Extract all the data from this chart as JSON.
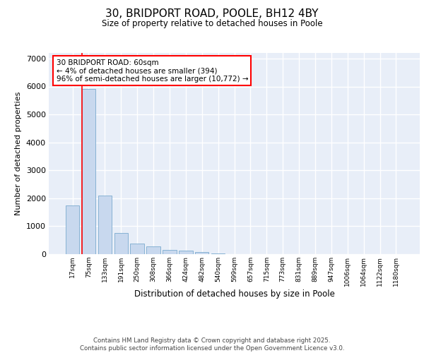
{
  "title_line1": "30, BRIDPORT ROAD, POOLE, BH12 4BY",
  "title_line2": "Size of property relative to detached houses in Poole",
  "xlabel": "Distribution of detached houses by size in Poole",
  "ylabel": "Number of detached properties",
  "categories": [
    "17sqm",
    "75sqm",
    "133sqm",
    "191sqm",
    "250sqm",
    "308sqm",
    "366sqm",
    "424sqm",
    "482sqm",
    "540sqm",
    "599sqm",
    "657sqm",
    "715sqm",
    "773sqm",
    "831sqm",
    "889sqm",
    "947sqm",
    "1006sqm",
    "1064sqm",
    "1122sqm",
    "1180sqm"
  ],
  "values": [
    1750,
    5900,
    2100,
    750,
    370,
    270,
    150,
    120,
    70,
    30,
    10,
    0,
    0,
    0,
    0,
    0,
    0,
    0,
    0,
    0,
    0
  ],
  "bar_color": "#c8d8ee",
  "bar_edge_color": "#7aaacf",
  "annotation_box_text": "30 BRIDPORT ROAD: 60sqm\n← 4% of detached houses are smaller (394)\n96% of semi-detached houses are larger (10,772) →",
  "ylim": [
    0,
    7200
  ],
  "yticks": [
    0,
    1000,
    2000,
    3000,
    4000,
    5000,
    6000,
    7000
  ],
  "background_color": "#e8eef8",
  "grid_color": "#ffffff",
  "footer_line1": "Contains HM Land Registry data © Crown copyright and database right 2025.",
  "footer_line2": "Contains public sector information licensed under the Open Government Licence v3.0."
}
